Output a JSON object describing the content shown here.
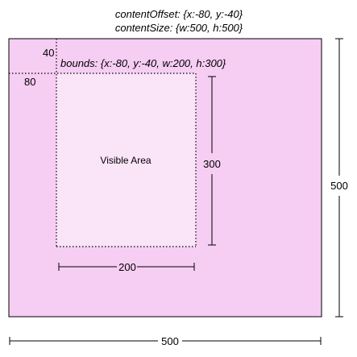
{
  "header": {
    "content_offset": "contentOffset: {x:-80, y:-40}",
    "content_size": "contentSize: {w:500, h:500}"
  },
  "bounds_label": "bounds: {x:-80, y:-40, w:200, h:300}",
  "visible_area_label": "Visible Area",
  "offset_x_label": "80",
  "offset_y_label": "40",
  "dimensions": {
    "visible_width": "200",
    "visible_height": "300",
    "content_width": "500",
    "content_height": "500"
  },
  "colors": {
    "content_fill": "#f6cdf3",
    "visible_fill": "#fae4f8",
    "stroke": "#000000"
  }
}
